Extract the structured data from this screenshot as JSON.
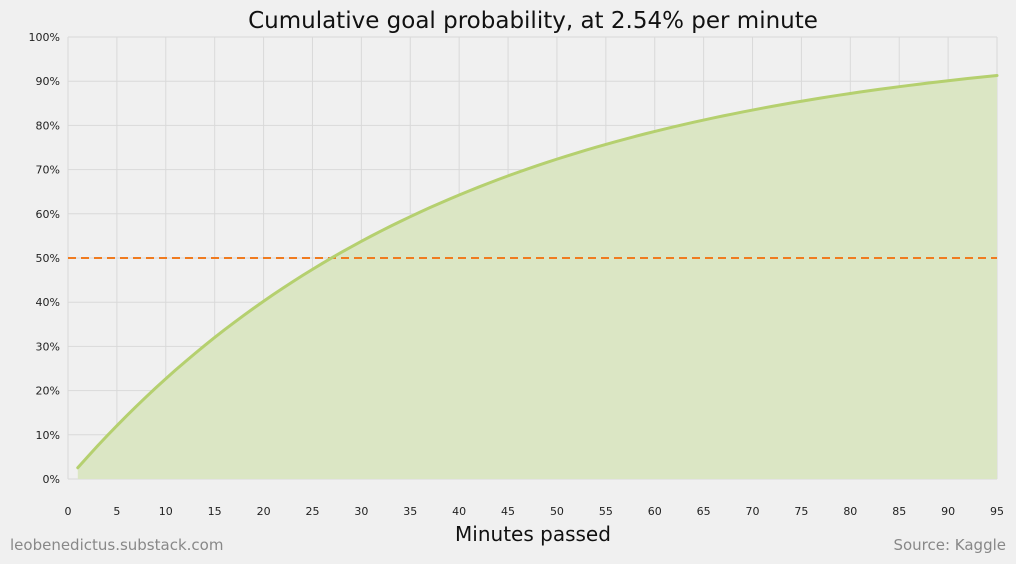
{
  "chart_data": {
    "type": "area",
    "title": "Cumulative goal probability, at 2.54% per minute",
    "xlabel": "Minutes passed",
    "ylabel": "",
    "x": [
      1,
      2,
      3,
      4,
      5,
      6,
      7,
      8,
      9,
      10,
      11,
      12,
      13,
      14,
      15,
      16,
      17,
      18,
      19,
      20,
      21,
      22,
      23,
      24,
      25,
      26,
      27,
      28,
      29,
      30,
      31,
      32,
      33,
      34,
      35,
      36,
      37,
      38,
      39,
      40,
      41,
      42,
      43,
      44,
      45,
      46,
      47,
      48,
      49,
      50,
      51,
      52,
      53,
      54,
      55,
      56,
      57,
      58,
      59,
      60,
      61,
      62,
      63,
      64,
      65,
      66,
      67,
      68,
      69,
      70,
      71,
      72,
      73,
      74,
      75,
      76,
      77,
      78,
      79,
      80,
      81,
      82,
      83,
      84,
      85,
      86,
      87,
      88,
      89,
      90,
      91,
      92,
      93,
      94,
      95
    ],
    "series": [
      {
        "rate_per_minute": 0.0254,
        "values": [
          2.54,
          5.01,
          7.43,
          9.78,
          12.07,
          14.3,
          16.48,
          18.6,
          20.67,
          22.68,
          24.65,
          26.56,
          28.43,
          30.25,
          32.02,
          33.74,
          35.42,
          37.06,
          38.66,
          40.22,
          41.74,
          43.22,
          44.66,
          46.06,
          47.43,
          48.77,
          50.07,
          51.34,
          52.57,
          53.78,
          54.95,
          56.09,
          57.21,
          58.29,
          59.35,
          60.38,
          61.39,
          62.37,
          63.33,
          64.26,
          65.17,
          66.05,
          66.92,
          67.76,
          68.58,
          69.37,
          70.15,
          70.91,
          71.65,
          72.37,
          73.07,
          73.75,
          74.42,
          75.07,
          75.7,
          76.32,
          76.92,
          77.51,
          78.08,
          78.63,
          79.18,
          79.71,
          80.22,
          80.72,
          81.21,
          81.69,
          82.15,
          82.6,
          83.04,
          83.47,
          83.89,
          84.3,
          84.7,
          85.09,
          85.47,
          85.84,
          86.2,
          86.55,
          86.89,
          87.22,
          87.55,
          87.86,
          88.17,
          88.47,
          88.76,
          89.04,
          89.32,
          89.59,
          89.85,
          90.11,
          90.36,
          90.6,
          90.84,
          91.07,
          91.3
        ]
      }
    ],
    "reference_line": {
      "y": 50,
      "style": "dashed"
    },
    "xlim": [
      0,
      95
    ],
    "ylim": [
      0,
      100
    ],
    "x_ticks": [
      "0",
      "5",
      "10",
      "15",
      "20",
      "25",
      "30",
      "35",
      "40",
      "45",
      "50",
      "55",
      "60",
      "65",
      "70",
      "75",
      "80",
      "85",
      "90",
      "95"
    ],
    "x_tick_values": [
      0,
      5,
      10,
      15,
      20,
      25,
      30,
      35,
      40,
      45,
      50,
      55,
      60,
      65,
      70,
      75,
      80,
      85,
      90,
      95
    ],
    "y_ticks": [
      "0%",
      "10%",
      "20%",
      "30%",
      "40%",
      "50%",
      "60%",
      "70%",
      "80%",
      "90%",
      "100%"
    ],
    "y_tick_values": [
      0,
      10,
      20,
      30,
      40,
      50,
      60,
      70,
      80,
      90,
      100
    ],
    "grid": true,
    "legend": "none",
    "colors": {
      "background": "#f0f0f0",
      "line": "#b5d06f",
      "fill": "#dbe6c4",
      "reference": "#f07b1f",
      "grid": "#d9d9d9"
    }
  },
  "credits": {
    "left": "leobenedictus.substack.com",
    "right": "Source: Kaggle"
  }
}
